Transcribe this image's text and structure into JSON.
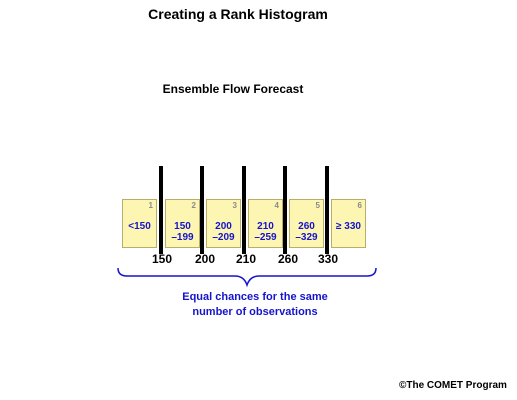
{
  "title": "Creating a Rank Histogram",
  "subtitle": "Ensemble Flow Forecast",
  "bins": [
    {
      "index": "1",
      "label": "<150"
    },
    {
      "index": "2",
      "label": "150\n–199"
    },
    {
      "index": "3",
      "label": "200\n–209"
    },
    {
      "index": "4",
      "label": "210\n–259"
    },
    {
      "index": "5",
      "label": "260\n–329"
    },
    {
      "index": "6",
      "label": "≥ 330"
    }
  ],
  "thresholds": [
    "150",
    "200",
    "210",
    "260",
    "330"
  ],
  "note_line1": "Equal chances for the same",
  "note_line2": "number of observations",
  "credit": "©The COMET Program",
  "colors": {
    "bin_fill": "#fdf5b2",
    "label_blue": "#1414cc",
    "divider": "#000000"
  }
}
